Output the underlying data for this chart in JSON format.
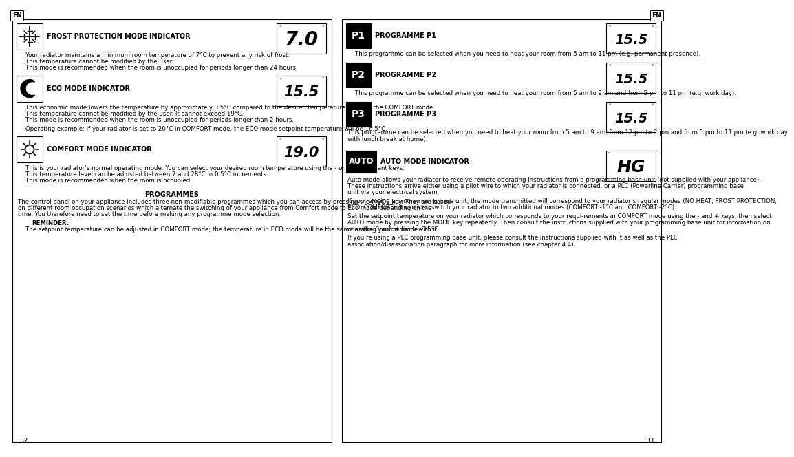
{
  "bg_color": "#ffffff",
  "left_sections": [
    {
      "id": "frost",
      "title": "FROST PROTECTION MODE INDICATOR",
      "display": "7.0",
      "body": [
        "    Your radiator maintains a minimum room temperature of 7°C to prevent any risk of frost.",
        "    This temperature cannot be modified by the user.",
        "    This mode is recommended when the room is unoccupied for periods longer than 24 hours."
      ]
    },
    {
      "id": "eco",
      "title": "ECO MODE INDICATOR",
      "display": "15.5",
      "body": [
        "    This economic mode lowers the temperature by approximately 3.5°C compared to the desired temperature level for the COMFORT mode.",
        "    This temperature cannot be modified by the user. It cannot exceed 19°C.",
        "    This mode is recommended when the room is unoccupied for periods longer than 2 hours.",
        "",
        "    Operating example: if your radiator is set to 20°C in COMFORT mode, the ECO mode setpoint temperature will be 16.5°C."
      ]
    },
    {
      "id": "comfort",
      "title": "COMFORT MODE INDICATOR",
      "display": "19.0",
      "body": [
        "    This is your radiator’s normal operating mode. You can select your desired room temperature using the - or + adjustment keys.",
        "    This temperature level can be adjusted between 7 and 28°C in 0.5°C increments.",
        "    This mode is recommended when the room is occupied."
      ]
    }
  ],
  "programmes_title": "PROGRAMMES",
  "programmes_body": [
    "    The control panel on your appliance includes three non-modifiable programmes which you can access by pressing the MODE key. They are based on different room occupation scenarios which alternate the switching of your appliance from Comfort mode to Eco mode depending on the time. You therefore need to set the time before making any programme mode selection.",
    "",
    "    REMINDER:",
    "    The setpoint temperature can be adjusted in COMFORT mode; the temperature in ECO mode will be the same as the Comfort mode -3.5°C"
  ],
  "right_sections": [
    {
      "id": "p1",
      "label": "P1",
      "title": "PROGRAMME P1",
      "display": "15.5",
      "body": [
        "    This programme can be selected when you need to heat your room from 5 am to 11 pm (e.g. permanent presence)."
      ]
    },
    {
      "id": "p2",
      "label": "P2",
      "title": "PROGRAMME P2",
      "display": "15.5",
      "body": [
        "    This programme can be selected when you need to heat your room from 5 am to 9 am and from 5 pm to 11 pm (e.g. work day)."
      ]
    },
    {
      "id": "p3",
      "label": "P3",
      "title": "PROGRAMME P3",
      "display": "15.5",
      "body": [
        "    This programme can be selected when you need to heat your room from 5 am to 9 am, from 12 pm to 2 pm and from 5 pm to 11 pm (e.g. work day with lunch break at home)."
      ]
    },
    {
      "id": "auto",
      "label": "AUTO",
      "title": "AUTO MODE INDICATOR",
      "display": "HG",
      "body": [
        "    Auto mode allows your radiator to receive remote operating instructions from a programming base unit (not supplied with your appliance). These instructions arrive either using a pilot wire to which your radiator is connected, or a PLC (Powerline Carrier) programming base unit via your electrical system.",
        "",
        "    If you’re using a programming base unit, the mode transmitted will correspond to your radiator’s regular modes (NO HEAT, FROST PROTECTION, ECO, COMFORT). It can also switch your radiator to two additional modes (COMFORT -1°C and COMFORT -2°C).",
        "",
        "    Set the setpoint temperature on your radiator which corresponds to your requi-rements in COMFORT mode using the - and + keys, then select AUTO mode by pressing the MODE key repeatedly. Then consult the instructions supplied with your programming base unit for information on operating your radiator with it.",
        "",
        "    If you’re using a PLC programming base unit, please consult the instructions supplied with it as well as the PLC association/disassociation paragraph for more information (see chapter 4.4)."
      ]
    }
  ]
}
